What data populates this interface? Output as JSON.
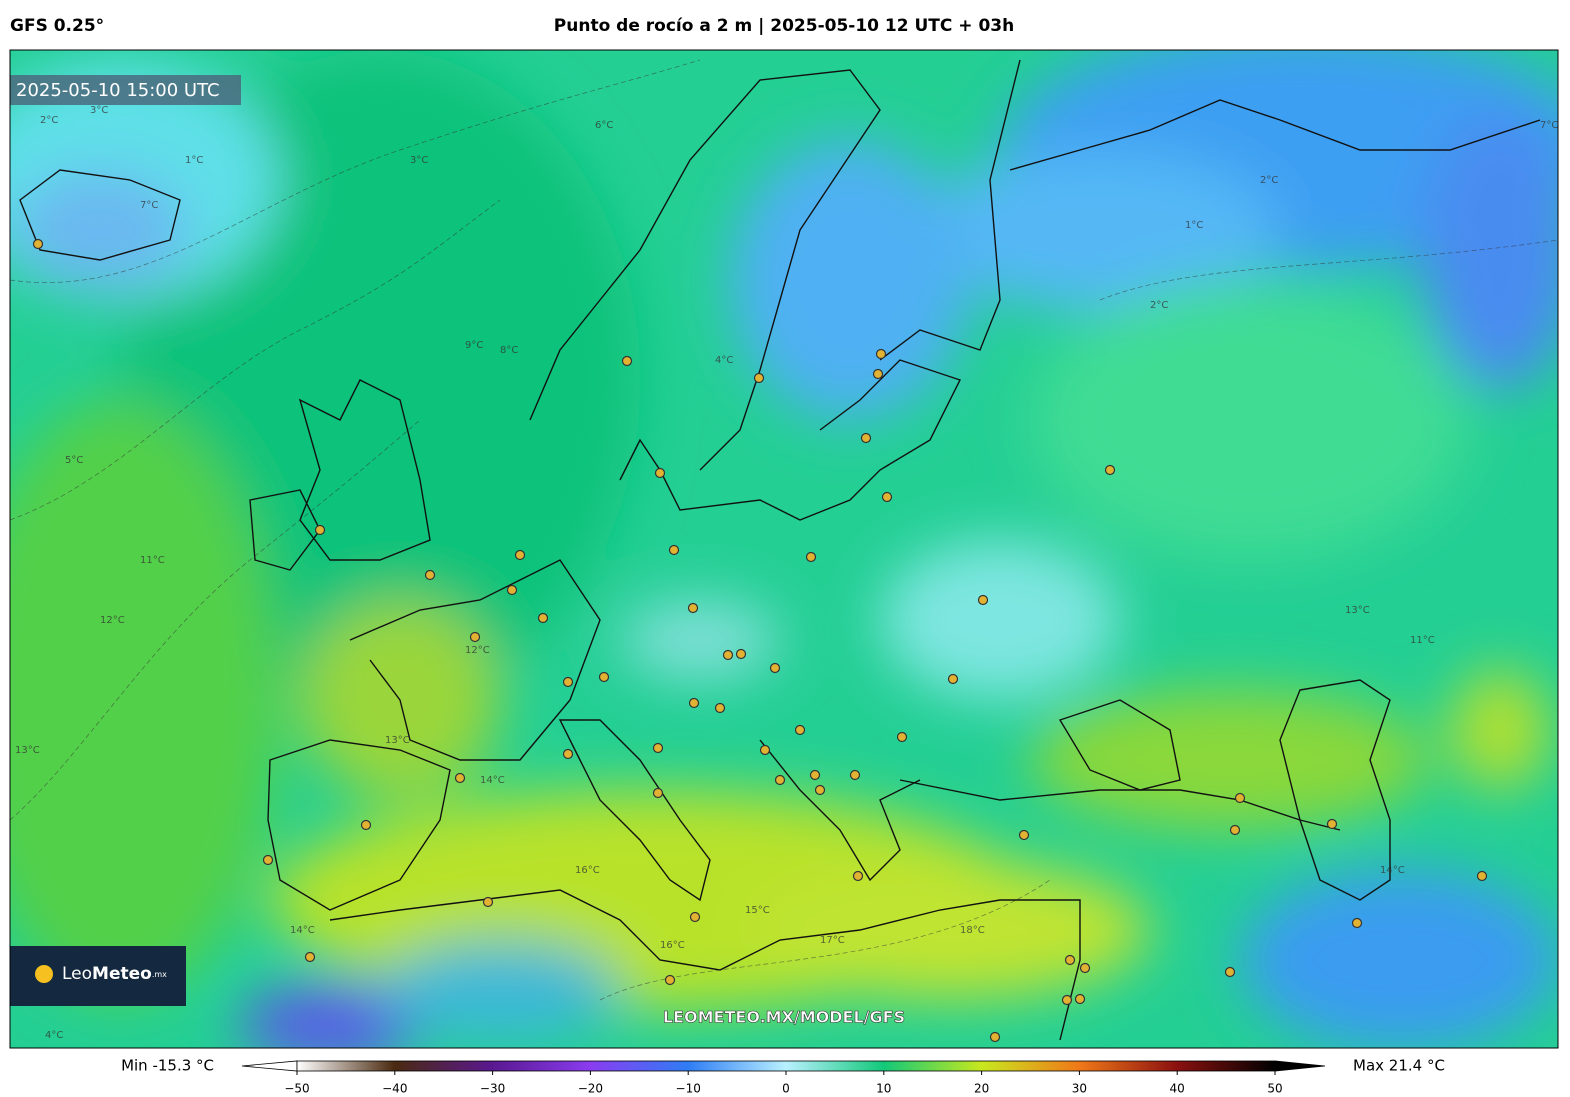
{
  "header": {
    "model": "GFS 0.25°",
    "title": "Punto de rocío a 2 m | 2025-05-10 12 UTC + 03h"
  },
  "map": {
    "valid_time": "2025-05-10 15:00 UTC",
    "logo": {
      "light": "Leo",
      "bold": "Meteo",
      "suffix": ".mx"
    },
    "watermark": "LEOMETEO.MX/MODEL/GFS",
    "contour_labels": [
      "2°C",
      "3°C",
      "1°C",
      "3°C",
      "6°C",
      "7°C",
      "9°C",
      "8°C",
      "4°C",
      "5°C",
      "11°C",
      "12°C",
      "12°C",
      "13°C",
      "14°C",
      "16°C",
      "15°C",
      "16°C",
      "17°C",
      "18°C",
      "2°C",
      "7°C",
      "2°C",
      "1°C",
      "13°C",
      "11°C",
      "14°C",
      "13°C",
      "14°C",
      "4°C"
    ]
  },
  "colorbar": {
    "min_label": "Min -15.3 °C",
    "max_label": "Max 21.4 °C",
    "ticks": [
      {
        "value": -50,
        "label": "−50"
      },
      {
        "value": -40,
        "label": "−40"
      },
      {
        "value": -30,
        "label": "−30"
      },
      {
        "value": -20,
        "label": "−20"
      },
      {
        "value": -10,
        "label": "−10"
      },
      0,
      10,
      20,
      30,
      40,
      50
    ],
    "colors": [
      "#ffffff",
      "#4a2a10",
      "#5a1890",
      "#8a3cf0",
      "#2f7df5",
      "#b8f0ff",
      "#12c879",
      "#c8e81e",
      "#f07818",
      "#8a1010",
      "#000000"
    ]
  }
}
